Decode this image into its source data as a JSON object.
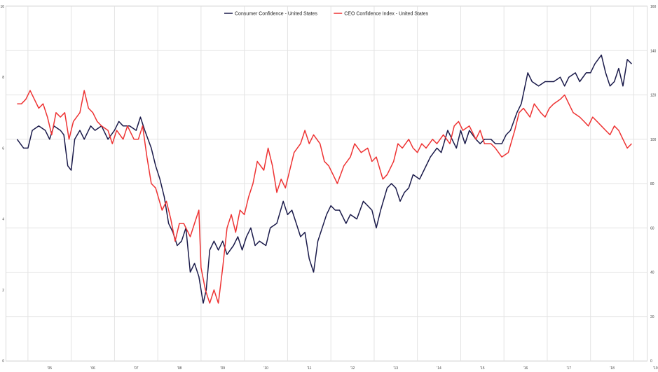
{
  "chart_data": {
    "type": "line",
    "legend_position": "top-center",
    "grid": true,
    "xlabel": "",
    "ylabel": "",
    "x_ticks": [
      "'05",
      "'06",
      "'07",
      "'08",
      "'09",
      "'10",
      "'11",
      "'12",
      "'13",
      "'14",
      "'15",
      "'16",
      "'17",
      "'18",
      "'19"
    ],
    "y_left": {
      "lim": [
        0,
        10
      ],
      "ticks": [
        "0",
        "2",
        "4",
        "6",
        "8",
        "10"
      ]
    },
    "y_right": {
      "lim": [
        0,
        160
      ],
      "ticks": [
        "0",
        "20",
        "40",
        "60",
        "80",
        "100",
        "120",
        "140",
        "160"
      ]
    },
    "series": [
      {
        "name": "Consumer Confidence - United States",
        "axis": "right",
        "color": "#1a1a4a",
        "points": [
          [
            2004.75,
            100
          ],
          [
            2004.9,
            96
          ],
          [
            2005.0,
            96
          ],
          [
            2005.1,
            104
          ],
          [
            2005.25,
            106
          ],
          [
            2005.4,
            104
          ],
          [
            2005.5,
            100
          ],
          [
            2005.6,
            106
          ],
          [
            2005.75,
            104
          ],
          [
            2005.83,
            102
          ],
          [
            2005.92,
            88
          ],
          [
            2006.0,
            86
          ],
          [
            2006.08,
            100
          ],
          [
            2006.2,
            104
          ],
          [
            2006.3,
            100
          ],
          [
            2006.45,
            106
          ],
          [
            2006.55,
            104
          ],
          [
            2006.7,
            106
          ],
          [
            2006.85,
            100
          ],
          [
            2007.0,
            104
          ],
          [
            2007.1,
            108
          ],
          [
            2007.2,
            106
          ],
          [
            2007.35,
            106
          ],
          [
            2007.5,
            104
          ],
          [
            2007.6,
            110
          ],
          [
            2007.7,
            104
          ],
          [
            2007.85,
            96
          ],
          [
            2007.95,
            88
          ],
          [
            2008.05,
            82
          ],
          [
            2008.15,
            74
          ],
          [
            2008.25,
            62
          ],
          [
            2008.35,
            58
          ],
          [
            2008.45,
            52
          ],
          [
            2008.55,
            54
          ],
          [
            2008.65,
            60
          ],
          [
            2008.75,
            40
          ],
          [
            2008.85,
            44
          ],
          [
            2008.95,
            38
          ],
          [
            2009.05,
            26
          ],
          [
            2009.12,
            32
          ],
          [
            2009.2,
            50
          ],
          [
            2009.3,
            54
          ],
          [
            2009.4,
            50
          ],
          [
            2009.5,
            54
          ],
          [
            2009.6,
            48
          ],
          [
            2009.75,
            52
          ],
          [
            2009.85,
            56
          ],
          [
            2009.95,
            50
          ],
          [
            2010.05,
            56
          ],
          [
            2010.15,
            60
          ],
          [
            2010.25,
            52
          ],
          [
            2010.35,
            54
          ],
          [
            2010.5,
            52
          ],
          [
            2010.6,
            60
          ],
          [
            2010.75,
            62
          ],
          [
            2010.9,
            72
          ],
          [
            2011.0,
            66
          ],
          [
            2011.1,
            68
          ],
          [
            2011.2,
            62
          ],
          [
            2011.3,
            56
          ],
          [
            2011.4,
            58
          ],
          [
            2011.5,
            46
          ],
          [
            2011.6,
            40
          ],
          [
            2011.7,
            54
          ],
          [
            2011.8,
            60
          ],
          [
            2011.9,
            66
          ],
          [
            2012.0,
            70
          ],
          [
            2012.1,
            68
          ],
          [
            2012.2,
            68
          ],
          [
            2012.35,
            62
          ],
          [
            2012.45,
            66
          ],
          [
            2012.6,
            64
          ],
          [
            2012.75,
            72
          ],
          [
            2012.85,
            70
          ],
          [
            2012.95,
            68
          ],
          [
            2013.05,
            60
          ],
          [
            2013.15,
            68
          ],
          [
            2013.3,
            78
          ],
          [
            2013.4,
            80
          ],
          [
            2013.5,
            78
          ],
          [
            2013.6,
            72
          ],
          [
            2013.7,
            76
          ],
          [
            2013.8,
            78
          ],
          [
            2013.9,
            84
          ],
          [
            2014.05,
            82
          ],
          [
            2014.15,
            86
          ],
          [
            2014.3,
            92
          ],
          [
            2014.45,
            96
          ],
          [
            2014.55,
            94
          ],
          [
            2014.7,
            104
          ],
          [
            2014.8,
            100
          ],
          [
            2014.9,
            96
          ],
          [
            2015.0,
            104
          ],
          [
            2015.1,
            98
          ],
          [
            2015.2,
            104
          ],
          [
            2015.35,
            100
          ],
          [
            2015.45,
            98
          ],
          [
            2015.55,
            100
          ],
          [
            2015.7,
            100
          ],
          [
            2015.8,
            98
          ],
          [
            2015.95,
            98
          ],
          [
            2016.05,
            102
          ],
          [
            2016.15,
            104
          ],
          [
            2016.3,
            112
          ],
          [
            2016.4,
            116
          ],
          [
            2016.55,
            130
          ],
          [
            2016.65,
            126
          ],
          [
            2016.8,
            124
          ],
          [
            2016.95,
            126
          ],
          [
            2017.05,
            126
          ],
          [
            2017.15,
            126
          ],
          [
            2017.3,
            128
          ],
          [
            2017.4,
            124
          ],
          [
            2017.5,
            128
          ],
          [
            2017.65,
            130
          ],
          [
            2017.75,
            126
          ],
          [
            2017.9,
            130
          ],
          [
            2018.0,
            130
          ],
          [
            2018.1,
            134
          ],
          [
            2018.25,
            138
          ],
          [
            2018.35,
            130
          ],
          [
            2018.45,
            124
          ],
          [
            2018.55,
            126
          ],
          [
            2018.65,
            132
          ],
          [
            2018.75,
            124
          ],
          [
            2018.85,
            136
          ],
          [
            2018.95,
            134
          ]
        ]
      },
      {
        "name": "CEO Confidence Index - United States",
        "axis": "right",
        "color": "#ee3333",
        "points": [
          [
            2004.75,
            116
          ],
          [
            2004.85,
            116
          ],
          [
            2004.95,
            118
          ],
          [
            2005.05,
            122
          ],
          [
            2005.15,
            118
          ],
          [
            2005.25,
            114
          ],
          [
            2005.35,
            116
          ],
          [
            2005.45,
            110
          ],
          [
            2005.55,
            102
          ],
          [
            2005.65,
            112
          ],
          [
            2005.75,
            110
          ],
          [
            2005.85,
            112
          ],
          [
            2005.95,
            100
          ],
          [
            2006.05,
            108
          ],
          [
            2006.2,
            112
          ],
          [
            2006.3,
            122
          ],
          [
            2006.4,
            114
          ],
          [
            2006.5,
            112
          ],
          [
            2006.6,
            108
          ],
          [
            2006.7,
            106
          ],
          [
            2006.85,
            104
          ],
          [
            2006.95,
            98
          ],
          [
            2007.05,
            104
          ],
          [
            2007.2,
            100
          ],
          [
            2007.3,
            106
          ],
          [
            2007.45,
            100
          ],
          [
            2007.55,
            100
          ],
          [
            2007.65,
            106
          ],
          [
            2007.75,
            92
          ],
          [
            2007.85,
            80
          ],
          [
            2007.95,
            78
          ],
          [
            2008.1,
            68
          ],
          [
            2008.2,
            72
          ],
          [
            2008.3,
            64
          ],
          [
            2008.4,
            54
          ],
          [
            2008.5,
            62
          ],
          [
            2008.6,
            62
          ],
          [
            2008.75,
            56
          ],
          [
            2008.85,
            62
          ],
          [
            2008.95,
            68
          ],
          [
            2009.0,
            42
          ],
          [
            2009.1,
            32
          ],
          [
            2009.2,
            26
          ],
          [
            2009.3,
            32
          ],
          [
            2009.4,
            26
          ],
          [
            2009.5,
            42
          ],
          [
            2009.6,
            60
          ],
          [
            2009.7,
            66
          ],
          [
            2009.8,
            58
          ],
          [
            2009.9,
            68
          ],
          [
            2010.0,
            66
          ],
          [
            2010.1,
            74
          ],
          [
            2010.2,
            80
          ],
          [
            2010.3,
            90
          ],
          [
            2010.45,
            86
          ],
          [
            2010.55,
            96
          ],
          [
            2010.65,
            88
          ],
          [
            2010.75,
            76
          ],
          [
            2010.85,
            82
          ],
          [
            2010.95,
            78
          ],
          [
            2011.05,
            86
          ],
          [
            2011.15,
            94
          ],
          [
            2011.3,
            98
          ],
          [
            2011.4,
            104
          ],
          [
            2011.5,
            98
          ],
          [
            2011.6,
            102
          ],
          [
            2011.75,
            98
          ],
          [
            2011.85,
            90
          ],
          [
            2011.95,
            88
          ],
          [
            2012.05,
            84
          ],
          [
            2012.15,
            80
          ],
          [
            2012.3,
            88
          ],
          [
            2012.45,
            92
          ],
          [
            2012.55,
            98
          ],
          [
            2012.7,
            94
          ],
          [
            2012.85,
            96
          ],
          [
            2012.95,
            90
          ],
          [
            2013.05,
            92
          ],
          [
            2013.2,
            82
          ],
          [
            2013.3,
            84
          ],
          [
            2013.45,
            90
          ],
          [
            2013.55,
            98
          ],
          [
            2013.65,
            96
          ],
          [
            2013.8,
            100
          ],
          [
            2013.9,
            96
          ],
          [
            2014.0,
            94
          ],
          [
            2014.1,
            98
          ],
          [
            2014.2,
            96
          ],
          [
            2014.35,
            100
          ],
          [
            2014.45,
            98
          ],
          [
            2014.6,
            102
          ],
          [
            2014.75,
            98
          ],
          [
            2014.85,
            106
          ],
          [
            2014.95,
            108
          ],
          [
            2015.05,
            104
          ],
          [
            2015.2,
            106
          ],
          [
            2015.35,
            100
          ],
          [
            2015.45,
            104
          ],
          [
            2015.55,
            98
          ],
          [
            2015.7,
            98
          ],
          [
            2015.8,
            96
          ],
          [
            2015.95,
            92
          ],
          [
            2016.1,
            94
          ],
          [
            2016.25,
            104
          ],
          [
            2016.35,
            112
          ],
          [
            2016.45,
            114
          ],
          [
            2016.6,
            110
          ],
          [
            2016.7,
            116
          ],
          [
            2016.85,
            112
          ],
          [
            2016.95,
            110
          ],
          [
            2017.05,
            114
          ],
          [
            2017.15,
            116
          ],
          [
            2017.3,
            118
          ],
          [
            2017.4,
            120
          ],
          [
            2017.5,
            116
          ],
          [
            2017.6,
            112
          ],
          [
            2017.75,
            110
          ],
          [
            2017.85,
            108
          ],
          [
            2017.95,
            106
          ],
          [
            2018.05,
            110
          ],
          [
            2018.15,
            108
          ],
          [
            2018.25,
            106
          ],
          [
            2018.35,
            104
          ],
          [
            2018.45,
            102
          ],
          [
            2018.55,
            106
          ],
          [
            2018.65,
            104
          ],
          [
            2018.75,
            100
          ],
          [
            2018.85,
            96
          ],
          [
            2018.95,
            98
          ]
        ]
      }
    ]
  }
}
